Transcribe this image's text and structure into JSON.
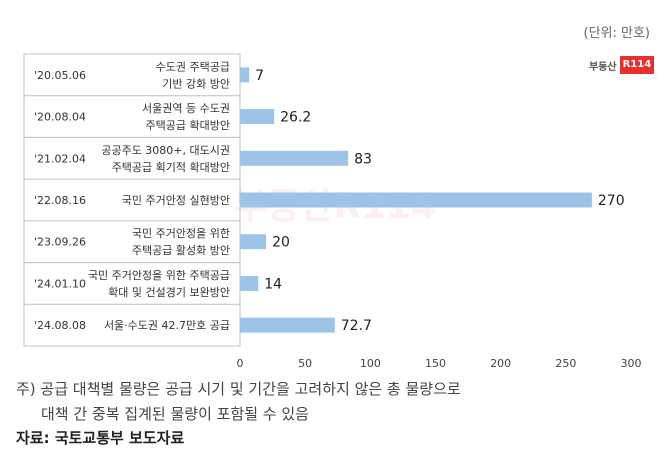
{
  "unit_label": "(단위: 만호)",
  "logo": {
    "text": "부동산",
    "badge": "R114"
  },
  "chart_data": {
    "type": "bar",
    "orientation": "horizontal",
    "categories": [
      {
        "date": "'20.05.06",
        "name": [
          "수도권 주택공급",
          "기반 강화 방안"
        ]
      },
      {
        "date": "'20.08.04",
        "name": [
          "서울권역 등 수도권",
          "주택공급 확대방안"
        ]
      },
      {
        "date": "'21.02.04",
        "name": [
          "공공주도 3080+, 대도시권",
          "주택공급 획기적 확대방안"
        ]
      },
      {
        "date": "'22.08.16",
        "name": [
          "국민 주거안정 실현방안"
        ]
      },
      {
        "date": "'23.09.26",
        "name": [
          "국민 주거안정을 위한",
          "주택공급 활성화 방안"
        ]
      },
      {
        "date": "'24.01.10",
        "name": [
          "국민 주거안정을 위한 주택공급",
          "확대 및 건설경기 보완방안"
        ]
      },
      {
        "date": "'24.08.08",
        "name": [
          "서울·수도권 42.7만호 공급"
        ]
      }
    ],
    "values": [
      7,
      26.2,
      83,
      270,
      20,
      14,
      72.7
    ],
    "value_labels": [
      "7",
      "26.2",
      "83",
      "270",
      "20",
      "14",
      "72.7"
    ],
    "xlim": [
      0,
      300
    ],
    "xticks": [
      0,
      50,
      100,
      150,
      200,
      250,
      300
    ],
    "bar_color": "#9dc3e6",
    "watermark": "부동산R114"
  },
  "footnote": {
    "line1": "주) 공급 대책별 물량은 공급 시기 및 기간을 고려하지 않은 총 물량으로",
    "line2": "대책 간 중복 집계된 물량이 포함될 수 있음"
  },
  "source": "자료: 국토교통부 보도자료"
}
